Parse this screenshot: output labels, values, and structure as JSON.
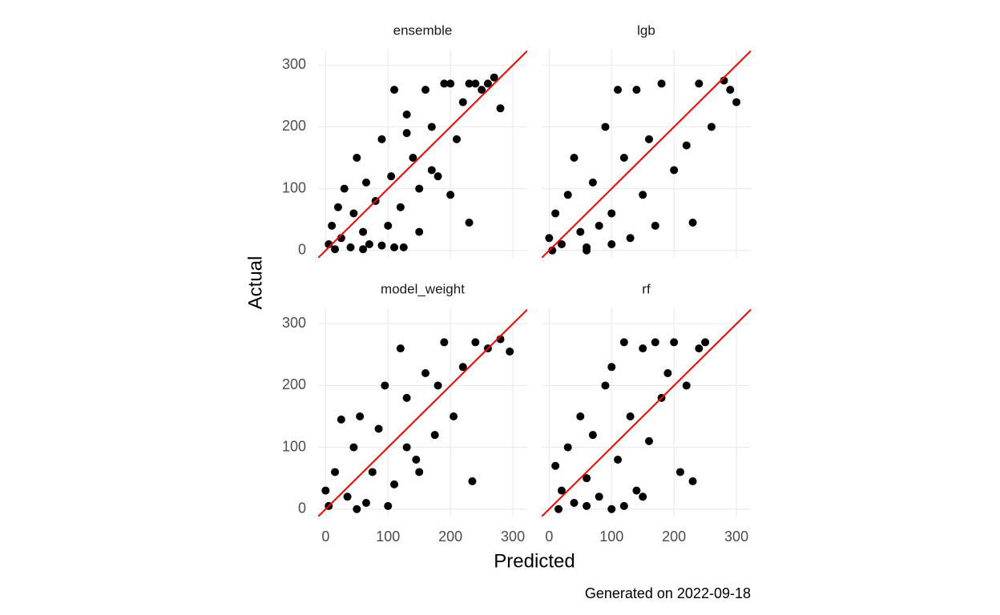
{
  "chart_data": {
    "type": "scatter",
    "xlabel": "Predicted",
    "ylabel": "Actual",
    "caption": "Generated on 2022-09-18",
    "xlim": [
      -12,
      323
    ],
    "ylim": [
      -12,
      325
    ],
    "xticks": [
      0,
      100,
      200,
      300
    ],
    "yticks": [
      0,
      100,
      200,
      300
    ],
    "grid": true,
    "color": "#000000",
    "abline": {
      "intercept": 0,
      "slope": 1,
      "color": "#ff0000"
    },
    "facets": [
      {
        "title": "ensemble",
        "x": [
          5,
          10,
          15,
          20,
          25,
          30,
          40,
          45,
          50,
          60,
          65,
          70,
          80,
          90,
          100,
          105,
          110,
          120,
          125,
          130,
          140,
          150,
          160,
          170,
          180,
          190,
          200,
          210,
          220,
          230,
          240,
          250,
          260,
          270,
          280,
          110,
          130,
          150,
          60,
          230,
          90,
          170,
          200
        ],
        "y": [
          10,
          40,
          2,
          70,
          20,
          100,
          5,
          60,
          150,
          30,
          110,
          10,
          80,
          180,
          40,
          120,
          260,
          70,
          5,
          220,
          150,
          100,
          260,
          200,
          120,
          270,
          270,
          180,
          240,
          45,
          270,
          260,
          270,
          280,
          230,
          5,
          190,
          30,
          2,
          270,
          8,
          130,
          90
        ]
      },
      {
        "title": "lgb",
        "x": [
          0,
          5,
          10,
          20,
          30,
          40,
          50,
          60,
          70,
          80,
          90,
          100,
          110,
          120,
          130,
          140,
          150,
          160,
          170,
          180,
          200,
          220,
          240,
          260,
          280,
          300,
          290,
          230,
          100,
          60
        ],
        "y": [
          20,
          0,
          60,
          10,
          90,
          150,
          30,
          5,
          110,
          40,
          200,
          60,
          260,
          150,
          20,
          260,
          90,
          180,
          40,
          270,
          130,
          170,
          270,
          200,
          275,
          240,
          260,
          45,
          10,
          0
        ]
      },
      {
        "title": "model_weight",
        "x": [
          0,
          5,
          15,
          25,
          35,
          45,
          55,
          65,
          75,
          85,
          95,
          110,
          120,
          130,
          145,
          160,
          175,
          190,
          205,
          220,
          240,
          260,
          280,
          295,
          235,
          150,
          100,
          50,
          130,
          180
        ],
        "y": [
          30,
          5,
          60,
          145,
          20,
          100,
          150,
          10,
          60,
          130,
          200,
          40,
          260,
          180,
          80,
          220,
          120,
          270,
          150,
          230,
          270,
          260,
          275,
          255,
          45,
          60,
          5,
          0,
          100,
          200
        ]
      },
      {
        "title": "rf",
        "x": [
          10,
          15,
          20,
          30,
          40,
          50,
          60,
          70,
          80,
          90,
          100,
          110,
          120,
          130,
          140,
          150,
          160,
          170,
          180,
          190,
          200,
          210,
          220,
          230,
          240,
          250,
          100,
          150,
          60,
          120
        ],
        "y": [
          70,
          0,
          30,
          100,
          10,
          150,
          50,
          120,
          20,
          200,
          230,
          80,
          270,
          150,
          30,
          260,
          110,
          270,
          180,
          220,
          270,
          60,
          200,
          45,
          260,
          270,
          0,
          20,
          5,
          5
        ]
      }
    ]
  }
}
